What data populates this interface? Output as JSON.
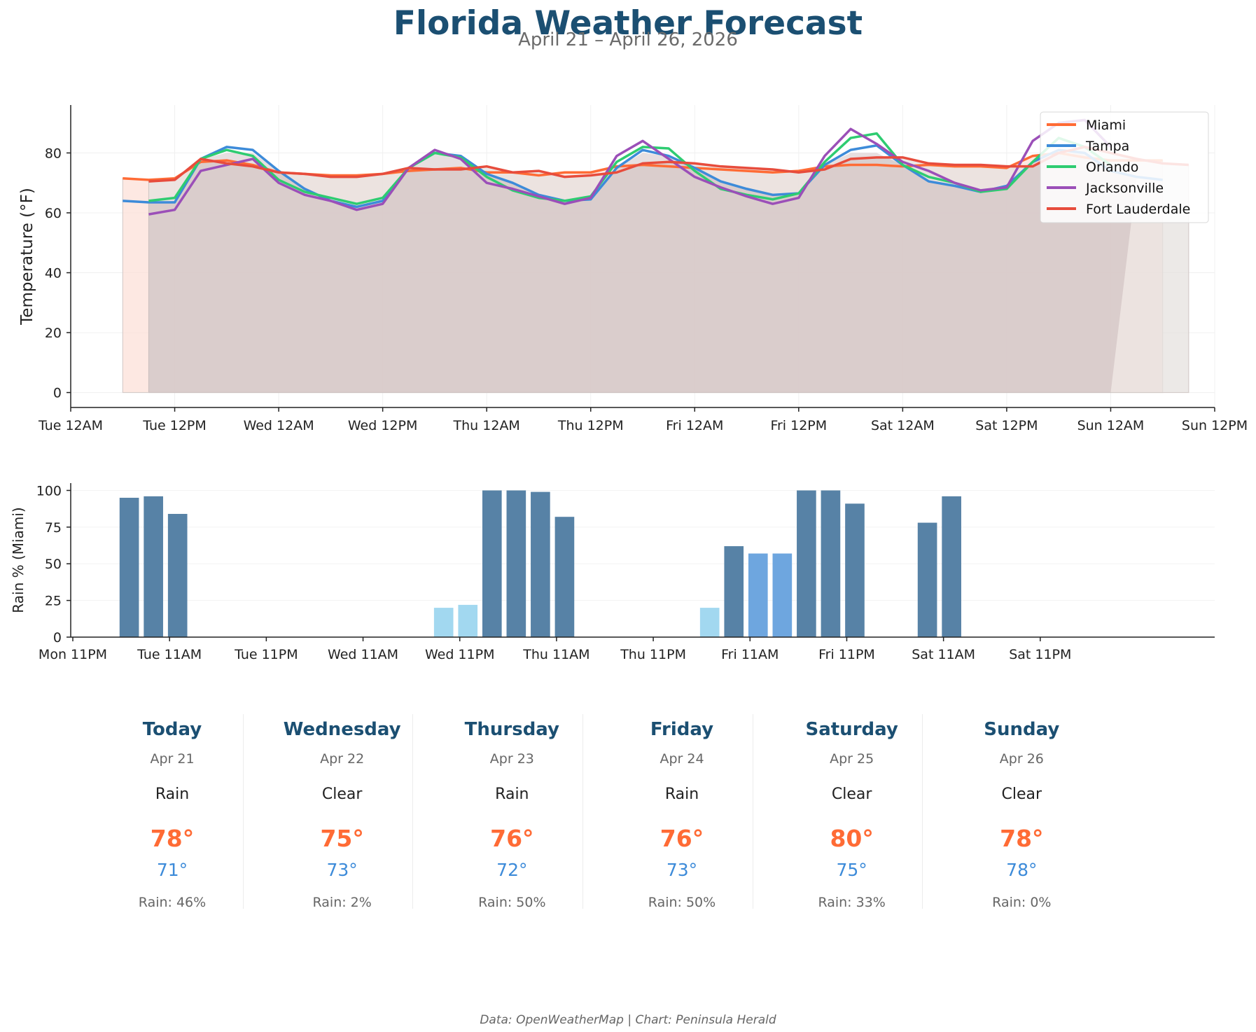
{
  "header": {
    "title": "Florida Weather Forecast",
    "subtitle": "April 21 – April 26, 2026"
  },
  "chart_data": [
    {
      "type": "line",
      "ylabel": "Temperature (°F)",
      "xlabel": "",
      "ylim": [
        -5,
        96
      ],
      "yticks": [
        0,
        20,
        40,
        60,
        80
      ],
      "x_unit": "hours from Tue 12AM, Apr 21 2026",
      "xlim": [
        0,
        132
      ],
      "xticks": [
        {
          "v": 0,
          "label": "Tue 12AM"
        },
        {
          "v": 12,
          "label": "Tue 12PM"
        },
        {
          "v": 24,
          "label": "Wed 12AM"
        },
        {
          "v": 36,
          "label": "Wed 12PM"
        },
        {
          "v": 48,
          "label": "Thu 12AM"
        },
        {
          "v": 60,
          "label": "Thu 12PM"
        },
        {
          "v": 72,
          "label": "Fri 12AM"
        },
        {
          "v": 84,
          "label": "Fri 12PM"
        },
        {
          "v": 96,
          "label": "Sat 12AM"
        },
        {
          "v": 108,
          "label": "Sat 12PM"
        },
        {
          "v": 120,
          "label": "Sun 12AM"
        },
        {
          "v": 132,
          "label": "Sun 12PM"
        }
      ],
      "grid": true,
      "legend": "top-right",
      "series": [
        {
          "name": "Miami",
          "color": "#ff6b35",
          "fill": "#fce0d8",
          "x": [
            6,
            9,
            12,
            15,
            18,
            21,
            24,
            27,
            30,
            33,
            36,
            39,
            42,
            45,
            48,
            51,
            54,
            57,
            60,
            63,
            66,
            69,
            72,
            75,
            78,
            81,
            84,
            87,
            90,
            93,
            96,
            99,
            102,
            105,
            108,
            111,
            114,
            117,
            120,
            123,
            126
          ],
          "values": [
            71.5,
            71,
            71.5,
            77,
            77.5,
            76,
            73.5,
            73,
            72.5,
            72.5,
            73,
            74,
            74.5,
            75,
            73.5,
            73.5,
            72.5,
            73.5,
            73.5,
            75.5,
            76,
            75.5,
            75,
            74.5,
            74,
            73.5,
            74,
            75.5,
            76,
            76,
            75.5,
            76,
            75.5,
            75.5,
            75,
            79,
            80,
            78.5,
            77.5,
            77.5,
            77.5
          ]
        },
        {
          "name": "Tampa",
          "color": "#3d8bd9",
          "x": [
            6,
            9,
            12,
            15,
            18,
            21,
            24,
            27,
            30,
            33,
            36,
            39,
            42,
            45,
            48,
            51,
            54,
            57,
            60,
            63,
            66,
            69,
            72,
            75,
            78,
            81,
            84,
            87,
            90,
            93,
            96,
            99,
            102,
            105,
            108,
            111,
            114,
            117,
            120,
            123,
            126
          ],
          "values": [
            64,
            63.5,
            63.5,
            78,
            82,
            81,
            74,
            68,
            64,
            62,
            64,
            75,
            80,
            79,
            73,
            70,
            66,
            64,
            64.5,
            75,
            81,
            79,
            75,
            70.5,
            68,
            66,
            66.5,
            76,
            81,
            82.5,
            76,
            70.5,
            69,
            67,
            69,
            77,
            81,
            80,
            74,
            72,
            71
          ]
        },
        {
          "name": "Orlando",
          "color": "#2ecc71",
          "x": [
            9,
            12,
            15,
            18,
            21,
            24,
            27,
            30,
            33,
            36,
            39,
            42,
            45,
            48,
            51,
            54,
            57,
            60,
            63,
            66,
            69,
            72,
            75,
            78,
            81,
            84,
            87,
            90,
            93,
            96,
            99,
            102,
            105,
            108,
            111,
            114,
            117,
            120
          ],
          "values": [
            64,
            65,
            78,
            81,
            79,
            71,
            67,
            65,
            63,
            65,
            75,
            80,
            78.5,
            72,
            67.5,
            65,
            64,
            65.5,
            77,
            82,
            81.5,
            74,
            68,
            66,
            64.5,
            66.5,
            77,
            85,
            86.5,
            76,
            72,
            70,
            67,
            68,
            77,
            85,
            82,
            76
          ]
        },
        {
          "name": "Jacksonville",
          "color": "#9b4fb8",
          "x": [
            9,
            12,
            15,
            18,
            21,
            24,
            27,
            30,
            33,
            36,
            39,
            42,
            45,
            48,
            51,
            54,
            57,
            60,
            63,
            66,
            69,
            72,
            75,
            78,
            81,
            84,
            87,
            90,
            93,
            96,
            99,
            102,
            105,
            108,
            111,
            114,
            117,
            120
          ],
          "values": [
            59.5,
            61,
            74,
            76,
            78,
            70,
            66,
            64,
            61,
            63,
            75,
            81,
            78,
            70,
            68,
            65.5,
            63,
            65,
            79,
            84,
            78,
            72,
            68.5,
            65.5,
            63,
            65,
            79,
            88,
            83,
            77,
            74,
            70,
            67.5,
            68.5,
            84,
            90,
            91,
            82
          ]
        },
        {
          "name": "Fort Lauderdale",
          "color": "#e74c3c",
          "fill": "#e6e1df",
          "x": [
            9,
            12,
            15,
            18,
            21,
            24,
            27,
            30,
            33,
            36,
            39,
            42,
            45,
            48,
            51,
            54,
            57,
            60,
            63,
            66,
            69,
            72,
            75,
            78,
            81,
            84,
            87,
            90,
            93,
            96,
            99,
            102,
            105,
            108,
            111,
            114,
            117,
            120,
            123,
            126,
            129
          ],
          "values": [
            70.5,
            71,
            78,
            76.5,
            75.5,
            73.5,
            73,
            72,
            72,
            73,
            75,
            74.5,
            74.5,
            75.5,
            73.5,
            74,
            72,
            72.5,
            73.5,
            76.5,
            77,
            76.5,
            75.5,
            75,
            74.5,
            73.5,
            74.5,
            78,
            78.5,
            78.5,
            76.5,
            76,
            76,
            75.5,
            75.5,
            80,
            82,
            80,
            78,
            76.5,
            76
          ]
        }
      ]
    },
    {
      "type": "bar",
      "ylabel": "Rain % (Miami)",
      "xlabel": "",
      "ylim": [
        0,
        105
      ],
      "yticks": [
        0,
        25,
        50,
        75,
        100
      ],
      "x_unit": "hours from Mon 11PM, Apr 20 2026",
      "xlim": [
        0,
        132
      ],
      "xticks": [
        {
          "v": 0,
          "label": "Mon 11PM"
        },
        {
          "v": 12,
          "label": "Tue 11AM"
        },
        {
          "v": 24,
          "label": "Tue 11PM"
        },
        {
          "v": 36,
          "label": "Wed 11AM"
        },
        {
          "v": 48,
          "label": "Wed 11PM"
        },
        {
          "v": 60,
          "label": "Thu 11AM"
        },
        {
          "v": 72,
          "label": "Thu 11PM"
        },
        {
          "v": 84,
          "label": "Fri 11AM"
        },
        {
          "v": 96,
          "label": "Fri 11PM"
        },
        {
          "v": 108,
          "label": "Sat 11AM"
        },
        {
          "v": 120,
          "label": "Sat 11PM"
        }
      ],
      "bar_width_hours": 2.4,
      "colors": {
        "heavy": "#5782a6",
        "medium": "#6ea6df",
        "light": "#a2d8f0"
      },
      "bars": [
        {
          "x": 7,
          "value": 95,
          "level": "heavy"
        },
        {
          "x": 10,
          "value": 96,
          "level": "heavy"
        },
        {
          "x": 13,
          "value": 84,
          "level": "heavy"
        },
        {
          "x": 46,
          "value": 20,
          "level": "light"
        },
        {
          "x": 49,
          "value": 22,
          "level": "light"
        },
        {
          "x": 52,
          "value": 100,
          "level": "heavy"
        },
        {
          "x": 55,
          "value": 100,
          "level": "heavy"
        },
        {
          "x": 58,
          "value": 99,
          "level": "heavy"
        },
        {
          "x": 61,
          "value": 82,
          "level": "heavy"
        },
        {
          "x": 79,
          "value": 20,
          "level": "light"
        },
        {
          "x": 82,
          "value": 62,
          "level": "heavy"
        },
        {
          "x": 85,
          "value": 57,
          "level": "medium"
        },
        {
          "x": 88,
          "value": 57,
          "level": "medium"
        },
        {
          "x": 91,
          "value": 100,
          "level": "heavy"
        },
        {
          "x": 94,
          "value": 100,
          "level": "heavy"
        },
        {
          "x": 97,
          "value": 91,
          "level": "heavy"
        },
        {
          "x": 106,
          "value": 78,
          "level": "heavy"
        },
        {
          "x": 109,
          "value": 96,
          "level": "heavy"
        }
      ]
    }
  ],
  "forecast": [
    {
      "day": "Today",
      "date": "Apr 21",
      "condition": "Rain",
      "high": "78°",
      "low": "71°",
      "rain": "Rain: 46%"
    },
    {
      "day": "Wednesday",
      "date": "Apr 22",
      "condition": "Clear",
      "high": "75°",
      "low": "73°",
      "rain": "Rain: 2%"
    },
    {
      "day": "Thursday",
      "date": "Apr 23",
      "condition": "Rain",
      "high": "76°",
      "low": "72°",
      "rain": "Rain: 50%"
    },
    {
      "day": "Friday",
      "date": "Apr 24",
      "condition": "Rain",
      "high": "76°",
      "low": "73°",
      "rain": "Rain: 50%"
    },
    {
      "day": "Saturday",
      "date": "Apr 25",
      "condition": "Clear",
      "high": "80°",
      "low": "75°",
      "rain": "Rain: 33%"
    },
    {
      "day": "Sunday",
      "date": "Apr 26",
      "condition": "Clear",
      "high": "78°",
      "low": "78°",
      "rain": "Rain: 0%"
    }
  ],
  "footer": {
    "credit": "Data: OpenWeatherMap | Chart: Peninsula Herald"
  }
}
